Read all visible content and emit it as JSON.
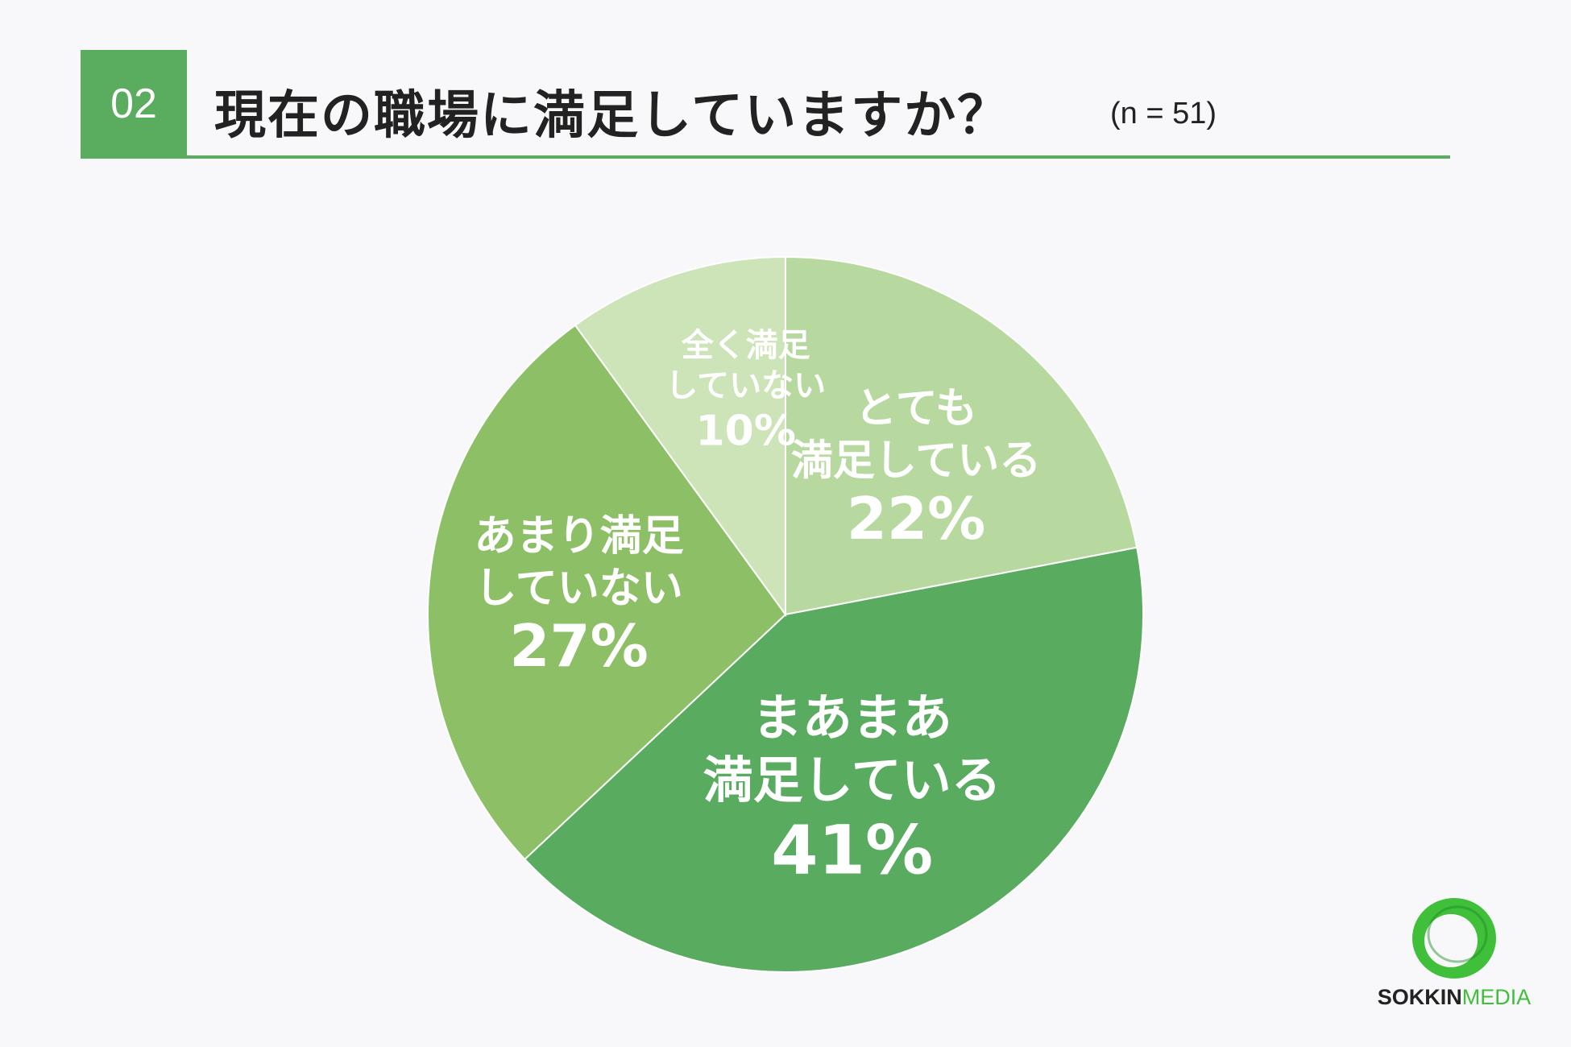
{
  "header": {
    "number": "02",
    "title": "現在の職場に満足していますか？",
    "sample_size": "(n = 51)"
  },
  "chart_data": {
    "type": "pie",
    "start_angle_deg": 0,
    "direction": "clockwise",
    "slices": [
      {
        "label_lines": [
          "とても",
          "満足している"
        ],
        "percent_label": "22%",
        "value": 22,
        "color": "#b7d99f"
      },
      {
        "label_lines": [
          "まあまあ",
          "満足している"
        ],
        "percent_label": "41%",
        "value": 41,
        "color": "#59ab5f"
      },
      {
        "label_lines": [
          "あまり満足",
          "していない"
        ],
        "percent_label": "27%",
        "value": 27,
        "color": "#8dc066"
      },
      {
        "label_lines": [
          "全く満足",
          "していない"
        ],
        "percent_label": "10%",
        "value": 10,
        "color": "#cce4b7"
      }
    ]
  },
  "logo": {
    "brand_bold": "SOKKIN",
    "brand_light": "MEDIA",
    "ring_color": "#3fbf3a"
  }
}
